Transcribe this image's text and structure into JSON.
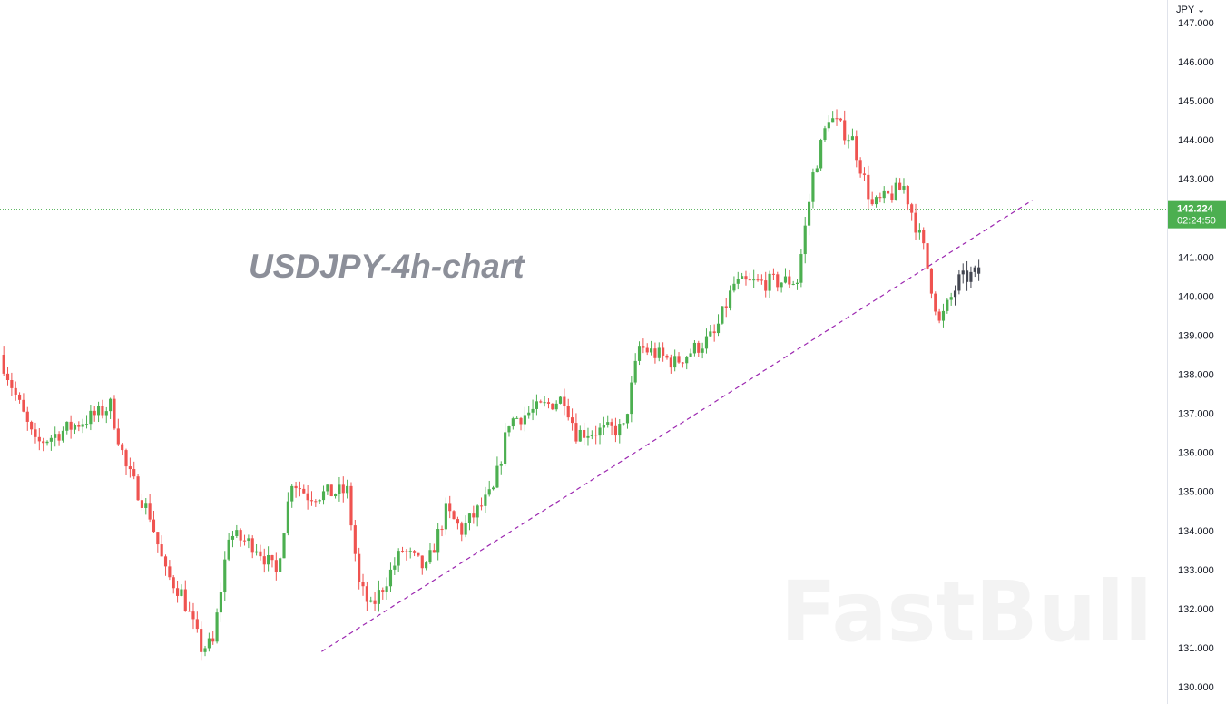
{
  "chart_data": {
    "type": "candlestick",
    "title": "USDJPY-4h-chart",
    "currency": "JPY",
    "ylim": [
      130.0,
      147.0
    ],
    "y_ticks": [
      "147.000",
      "146.000",
      "145.000",
      "144.000",
      "143.000",
      "142.000",
      "141.000",
      "140.000",
      "139.000",
      "138.000",
      "137.000",
      "136.000",
      "135.000",
      "134.000",
      "133.000",
      "132.000",
      "131.000",
      "130.000"
    ],
    "current_price": 142.224,
    "current_price_label": "142.224",
    "countdown_label": "02:24:50",
    "watermark": "FastBull",
    "trendline": {
      "start": {
        "bar": 81,
        "price": 130.9
      },
      "end": {
        "bar": 261,
        "price": 142.45
      }
    },
    "highlight_from_bar": 241,
    "segments": [
      {
        "bars": 5,
        "from": 138.5,
        "to": 137.2
      },
      {
        "bars": 4,
        "from": 137.2,
        "to": 136.2
      },
      {
        "bars": 16,
        "from": 136.2,
        "to": 137.0
      },
      {
        "bars": 3,
        "from": 137.0,
        "to": 137.2
      },
      {
        "bars": 4,
        "from": 137.2,
        "to": 135.6
      },
      {
        "bars": 6,
        "from": 135.6,
        "to": 134.4
      },
      {
        "bars": 4,
        "from": 134.4,
        "to": 132.9
      },
      {
        "bars": 4,
        "from": 132.9,
        "to": 132.4
      },
      {
        "bars": 5,
        "from": 132.4,
        "to": 131.0
      },
      {
        "bars": 3,
        "from": 131.0,
        "to": 131.1
      },
      {
        "bars": 4,
        "from": 131.1,
        "to": 133.9
      },
      {
        "bars": 7,
        "from": 133.9,
        "to": 133.6
      },
      {
        "bars": 5,
        "from": 133.6,
        "to": 132.9
      },
      {
        "bars": 4,
        "from": 132.9,
        "to": 135.3
      },
      {
        "bars": 4,
        "from": 135.3,
        "to": 134.9
      },
      {
        "bars": 10,
        "from": 134.9,
        "to": 135.0
      },
      {
        "bars": 3,
        "from": 135.0,
        "to": 132.6
      },
      {
        "bars": 3,
        "from": 132.6,
        "to": 132.0
      },
      {
        "bars": 8,
        "from": 132.0,
        "to": 133.5
      },
      {
        "bars": 6,
        "from": 133.5,
        "to": 133.0
      },
      {
        "bars": 5,
        "from": 133.0,
        "to": 134.5
      },
      {
        "bars": 4,
        "from": 134.5,
        "to": 134.0
      },
      {
        "bars": 8,
        "from": 134.0,
        "to": 135.0
      },
      {
        "bars": 4,
        "from": 135.0,
        "to": 136.8
      },
      {
        "bars": 14,
        "from": 136.8,
        "to": 137.4
      },
      {
        "bars": 3,
        "from": 137.4,
        "to": 136.5
      },
      {
        "bars": 12,
        "from": 136.5,
        "to": 136.6
      },
      {
        "bars": 4,
        "from": 136.6,
        "to": 138.7
      },
      {
        "bars": 9,
        "from": 138.7,
        "to": 138.3
      },
      {
        "bars": 10,
        "from": 138.3,
        "to": 139.0
      },
      {
        "bars": 5,
        "from": 139.0,
        "to": 140.3
      },
      {
        "bars": 16,
        "from": 140.3,
        "to": 140.4
      },
      {
        "bars": 4,
        "from": 140.4,
        "to": 143.1
      },
      {
        "bars": 4,
        "from": 143.1,
        "to": 144.6
      },
      {
        "bars": 6,
        "from": 144.6,
        "to": 144.0
      },
      {
        "bars": 5,
        "from": 144.0,
        "to": 142.3
      },
      {
        "bars": 8,
        "from": 142.3,
        "to": 142.8
      },
      {
        "bars": 5,
        "from": 142.8,
        "to": 141.2
      },
      {
        "bars": 4,
        "from": 141.2,
        "to": 139.3
      },
      {
        "bars": 5,
        "from": 139.3,
        "to": 140.4
      },
      {
        "bars": 5,
        "from": 140.4,
        "to": 140.6
      }
    ]
  },
  "colors": {
    "up": "#4caf50",
    "down": "#ef5350",
    "highlight": "#434651",
    "trendline": "#9c27b0",
    "price_line": "#4caf50",
    "price_label_bg": "#4caf50",
    "title": "#8c8f99",
    "watermark": "#f3f3f3",
    "axis_text": "#131722",
    "axis_border": "#e0e3eb"
  }
}
